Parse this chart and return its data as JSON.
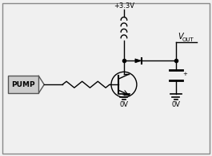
{
  "bg_color": "#f0f0f0",
  "border_color": "#888888",
  "line_color": "#000000",
  "component_color": "#000000",
  "pump_fill": "#cccccc",
  "title_color": "#000000",
  "vcc_label": "+3.3V",
  "vout_label_v": "V",
  "vout_label_sub": "OUT",
  "gnd_label": "0V",
  "pump_label": "PUMP",
  "figsize": [
    2.65,
    1.96
  ],
  "dpi": 100
}
